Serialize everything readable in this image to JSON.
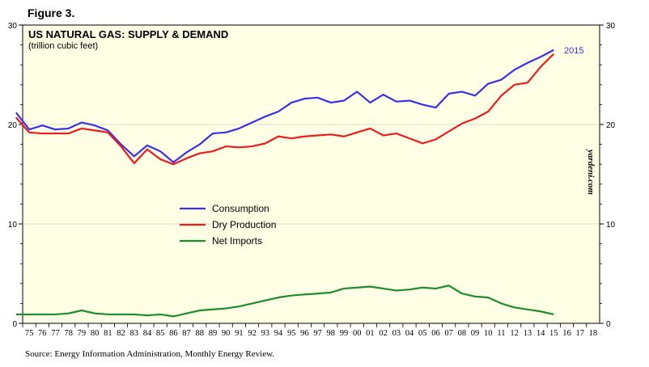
{
  "figure_label": "Figure 3.",
  "source": "Source: Energy Information Administration, Monthly Energy Review.",
  "watermark": "yardeni.com",
  "colors": {
    "plot_bg": "#ffffe6",
    "consumption": "#3a2ef0",
    "dry_production": "#ee1c1c",
    "net_imports": "#1f8c2c",
    "axis": "#000000"
  },
  "chart_data": {
    "type": "line",
    "title": "US NATURAL GAS: SUPPLY & DEMAND",
    "subtitle": "(trillion cubic feet)",
    "xlabel": "",
    "ylabel": "",
    "ylim": [
      0,
      30
    ],
    "yticks": [
      0,
      10,
      20,
      30
    ],
    "xlim": [
      1974.5,
      2018.5
    ],
    "x_tick_labels": [
      "75",
      "76",
      "77",
      "78",
      "79",
      "80",
      "81",
      "82",
      "83",
      "84",
      "85",
      "86",
      "87",
      "88",
      "89",
      "90",
      "91",
      "92",
      "93",
      "94",
      "95",
      "96",
      "97",
      "98",
      "99",
      "00",
      "01",
      "02",
      "03",
      "04",
      "05",
      "06",
      "07",
      "08",
      "09",
      "10",
      "11",
      "12",
      "13",
      "14",
      "15",
      "16",
      "17",
      "18"
    ],
    "x": [
      1974,
      1975,
      1976,
      1977,
      1978,
      1979,
      1980,
      1981,
      1982,
      1983,
      1984,
      1985,
      1986,
      1987,
      1988,
      1989,
      1990,
      1991,
      1992,
      1993,
      1994,
      1995,
      1996,
      1997,
      1998,
      1999,
      2000,
      2001,
      2002,
      2003,
      2004,
      2005,
      2006,
      2007,
      2008,
      2009,
      2010,
      2011,
      2012,
      2013,
      2014,
      2015
    ],
    "series": [
      {
        "name": "Consumption",
        "values": [
          21.2,
          19.5,
          19.9,
          19.5,
          19.6,
          20.2,
          19.9,
          19.4,
          18.0,
          16.8,
          17.9,
          17.3,
          16.2,
          17.2,
          18.0,
          19.1,
          19.2,
          19.6,
          20.2,
          20.8,
          21.3,
          22.2,
          22.6,
          22.7,
          22.2,
          22.4,
          23.3,
          22.2,
          23.0,
          22.3,
          22.4,
          22.0,
          21.7,
          23.1,
          23.3,
          22.9,
          24.1,
          24.5,
          25.5,
          26.2,
          26.8,
          27.5
        ]
      },
      {
        "name": "Dry Production",
        "values": [
          20.7,
          19.2,
          19.1,
          19.1,
          19.1,
          19.6,
          19.4,
          19.2,
          17.8,
          16.1,
          17.5,
          16.5,
          16.0,
          16.6,
          17.1,
          17.3,
          17.8,
          17.7,
          17.8,
          18.1,
          18.8,
          18.6,
          18.8,
          18.9,
          19.0,
          18.8,
          19.2,
          19.6,
          18.9,
          19.1,
          18.6,
          18.1,
          18.5,
          19.3,
          20.1,
          20.6,
          21.3,
          22.9,
          24.0,
          24.2,
          25.8,
          27.1
        ]
      },
      {
        "name": "Net Imports",
        "values": [
          0.9,
          0.9,
          0.9,
          0.9,
          1.0,
          1.3,
          1.0,
          0.9,
          0.9,
          0.9,
          0.8,
          0.9,
          0.7,
          1.0,
          1.3,
          1.4,
          1.5,
          1.7,
          2.0,
          2.3,
          2.6,
          2.8,
          2.9,
          3.0,
          3.1,
          3.5,
          3.6,
          3.7,
          3.5,
          3.3,
          3.4,
          3.6,
          3.5,
          3.8,
          3.0,
          2.7,
          2.6,
          2.0,
          1.6,
          1.4,
          1.2,
          0.9
        ]
      }
    ],
    "annotations": [
      {
        "text": "2015",
        "x": 2015,
        "y": 27.5,
        "series": "Consumption"
      }
    ],
    "legend": {
      "placement": "center-left",
      "entries": [
        "Consumption",
        "Dry Production",
        "Net Imports"
      ]
    }
  }
}
